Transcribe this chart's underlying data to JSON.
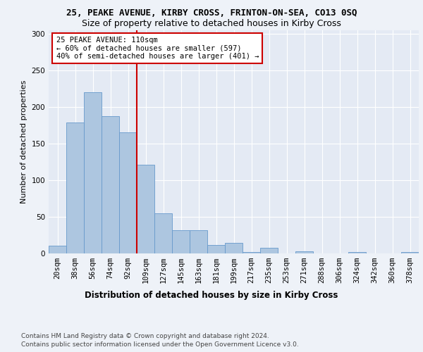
{
  "title1": "25, PEAKE AVENUE, KIRBY CROSS, FRINTON-ON-SEA, CO13 0SQ",
  "title2": "Size of property relative to detached houses in Kirby Cross",
  "xlabel": "Distribution of detached houses by size in Kirby Cross",
  "ylabel": "Number of detached properties",
  "categories": [
    "20sqm",
    "38sqm",
    "56sqm",
    "74sqm",
    "92sqm",
    "109sqm",
    "127sqm",
    "145sqm",
    "163sqm",
    "181sqm",
    "199sqm",
    "217sqm",
    "235sqm",
    "253sqm",
    "271sqm",
    "288sqm",
    "306sqm",
    "324sqm",
    "342sqm",
    "360sqm",
    "378sqm"
  ],
  "bar_values": [
    11,
    179,
    220,
    187,
    165,
    121,
    55,
    32,
    32,
    12,
    14,
    2,
    8,
    0,
    3,
    0,
    0,
    2,
    0,
    0,
    2
  ],
  "bar_color": "#adc6e0",
  "bar_edgecolor": "#6699cc",
  "property_line_label": "25 PEAKE AVENUE: 110sqm",
  "annotation_line1": "← 60% of detached houses are smaller (597)",
  "annotation_line2": "40% of semi-detached houses are larger (401) →",
  "annotation_box_color": "#ffffff",
  "annotation_box_edgecolor": "#cc0000",
  "vline_color": "#cc0000",
  "vline_x": 4.5,
  "ylim": [
    0,
    305
  ],
  "yticks": [
    0,
    50,
    100,
    150,
    200,
    250,
    300
  ],
  "footer1": "Contains HM Land Registry data © Crown copyright and database right 2024.",
  "footer2": "Contains public sector information licensed under the Open Government Licence v3.0.",
  "bg_color": "#eef2f8",
  "plot_bg_color": "#e4eaf4",
  "grid_color": "#ffffff",
  "title1_fontsize": 9,
  "title2_fontsize": 9,
  "xlabel_fontsize": 8.5,
  "ylabel_fontsize": 8,
  "tick_fontsize": 7.5,
  "annot_fontsize": 7.5,
  "footer_fontsize": 6.5
}
